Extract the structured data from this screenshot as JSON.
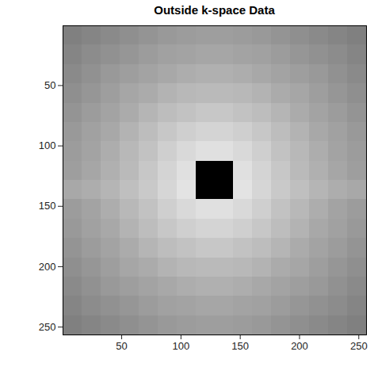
{
  "chart_data": {
    "type": "heatmap",
    "title": "Outside k-space Data",
    "xlim": [
      0.5,
      256.5
    ],
    "ylim": [
      0.5,
      256.5
    ],
    "xticks": [
      50,
      100,
      150,
      200,
      250
    ],
    "yticks": [
      50,
      100,
      150,
      200,
      250
    ],
    "cell_edges": [
      0.5,
      16.5,
      32.5,
      48.5,
      64.5,
      80.5,
      96.5,
      112.5,
      128.5,
      144.5,
      160.5,
      176.5,
      192.5,
      208.5,
      224.5,
      240.5,
      256.5
    ],
    "clim": [
      0,
      1
    ],
    "cells": [
      [
        0.5,
        0.52,
        0.54,
        0.56,
        0.58,
        0.6,
        0.61,
        0.62,
        0.62,
        0.61,
        0.6,
        0.58,
        0.56,
        0.54,
        0.52,
        0.5
      ],
      [
        0.52,
        0.55,
        0.57,
        0.59,
        0.61,
        0.63,
        0.64,
        0.65,
        0.65,
        0.64,
        0.63,
        0.61,
        0.59,
        0.57,
        0.55,
        0.52
      ],
      [
        0.54,
        0.57,
        0.6,
        0.62,
        0.64,
        0.66,
        0.68,
        0.69,
        0.69,
        0.68,
        0.66,
        0.64,
        0.62,
        0.6,
        0.57,
        0.54
      ],
      [
        0.56,
        0.59,
        0.62,
        0.65,
        0.67,
        0.7,
        0.72,
        0.73,
        0.73,
        0.72,
        0.7,
        0.67,
        0.65,
        0.62,
        0.59,
        0.56
      ],
      [
        0.58,
        0.61,
        0.64,
        0.67,
        0.71,
        0.74,
        0.76,
        0.78,
        0.78,
        0.76,
        0.74,
        0.71,
        0.67,
        0.64,
        0.61,
        0.58
      ],
      [
        0.6,
        0.63,
        0.66,
        0.7,
        0.74,
        0.78,
        0.81,
        0.83,
        0.83,
        0.81,
        0.78,
        0.74,
        0.7,
        0.66,
        0.63,
        0.6
      ],
      [
        0.61,
        0.64,
        0.68,
        0.72,
        0.76,
        0.81,
        0.85,
        0.88,
        0.88,
        0.85,
        0.81,
        0.76,
        0.72,
        0.68,
        0.64,
        0.61
      ],
      [
        0.62,
        0.65,
        0.69,
        0.73,
        0.78,
        0.83,
        0.88,
        0,
        0,
        0.88,
        0.83,
        0.78,
        0.73,
        0.69,
        0.65,
        0.62
      ],
      [
        0.66,
        0.68,
        0.71,
        0.75,
        0.79,
        0.84,
        0.89,
        0,
        0,
        0.89,
        0.84,
        0.79,
        0.75,
        0.71,
        0.68,
        0.66
      ],
      [
        0.61,
        0.64,
        0.68,
        0.72,
        0.76,
        0.81,
        0.85,
        0.88,
        0.88,
        0.85,
        0.81,
        0.76,
        0.72,
        0.68,
        0.64,
        0.61
      ],
      [
        0.6,
        0.63,
        0.66,
        0.7,
        0.74,
        0.78,
        0.81,
        0.83,
        0.83,
        0.81,
        0.78,
        0.74,
        0.7,
        0.66,
        0.63,
        0.6
      ],
      [
        0.58,
        0.61,
        0.64,
        0.67,
        0.71,
        0.74,
        0.76,
        0.78,
        0.78,
        0.76,
        0.74,
        0.71,
        0.67,
        0.64,
        0.61,
        0.58
      ],
      [
        0.56,
        0.59,
        0.62,
        0.65,
        0.67,
        0.7,
        0.72,
        0.73,
        0.73,
        0.72,
        0.7,
        0.67,
        0.65,
        0.62,
        0.59,
        0.56
      ],
      [
        0.54,
        0.57,
        0.6,
        0.62,
        0.64,
        0.66,
        0.68,
        0.69,
        0.69,
        0.68,
        0.66,
        0.64,
        0.62,
        0.6,
        0.57,
        0.54
      ],
      [
        0.52,
        0.55,
        0.57,
        0.59,
        0.61,
        0.63,
        0.64,
        0.65,
        0.65,
        0.64,
        0.63,
        0.61,
        0.59,
        0.57,
        0.55,
        0.52
      ],
      [
        0.5,
        0.52,
        0.54,
        0.56,
        0.58,
        0.6,
        0.61,
        0.62,
        0.62,
        0.61,
        0.6,
        0.58,
        0.56,
        0.54,
        0.52,
        0.5
      ]
    ]
  }
}
